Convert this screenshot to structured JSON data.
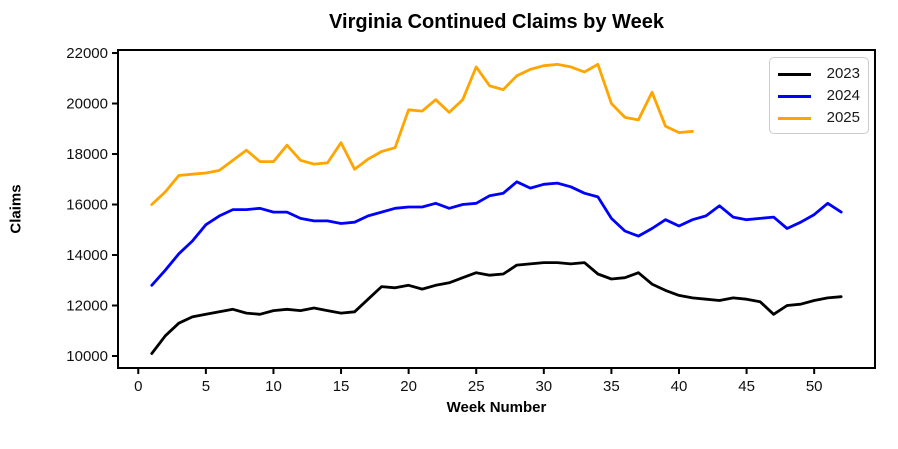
{
  "page": {
    "background": "#ffffff"
  },
  "chart_data": {
    "type": "line",
    "title": "Virginia Continued Claims by Week",
    "xlabel": "Week Number",
    "ylabel": "Claims",
    "x_ticks": [
      0,
      5,
      10,
      15,
      20,
      25,
      30,
      35,
      40,
      45,
      50
    ],
    "y_ticks": [
      10000,
      12000,
      14000,
      16000,
      18000,
      20000,
      22000
    ],
    "xlim": [
      -1.5,
      54.5
    ],
    "ylim": [
      9525,
      22120
    ],
    "grid": false,
    "axis_color": "#000000",
    "legend_position": "upper right",
    "legend_border_color": "#cccccc",
    "series": [
      {
        "name": "2023",
        "color": "#000000",
        "x": [
          1,
          2,
          3,
          4,
          5,
          6,
          7,
          8,
          9,
          10,
          11,
          12,
          13,
          14,
          15,
          16,
          17,
          18,
          19,
          20,
          21,
          22,
          23,
          24,
          25,
          26,
          27,
          28,
          29,
          30,
          31,
          32,
          33,
          34,
          35,
          36,
          37,
          38,
          39,
          40,
          41,
          42,
          43,
          44,
          45,
          46,
          47,
          48,
          49,
          50,
          51,
          52
        ],
        "values": [
          10100,
          10800,
          11300,
          11550,
          11650,
          11750,
          11850,
          11700,
          11650,
          11800,
          11850,
          11800,
          11900,
          11800,
          11700,
          11750,
          12250,
          12750,
          12700,
          12800,
          12650,
          12800,
          12900,
          13100,
          13300,
          13200,
          13250,
          13600,
          13650,
          13700,
          13700,
          13650,
          13700,
          13250,
          13050,
          13100,
          13300,
          12850,
          12600,
          12400,
          12300,
          12250,
          12200,
          12300,
          12250,
          12150,
          11650,
          12000,
          12050,
          12200,
          12300,
          12350
        ]
      },
      {
        "name": "2024",
        "color": "#0000ff",
        "x": [
          1,
          2,
          3,
          4,
          5,
          6,
          7,
          8,
          9,
          10,
          11,
          12,
          13,
          14,
          15,
          16,
          17,
          18,
          19,
          20,
          21,
          22,
          23,
          24,
          25,
          26,
          27,
          28,
          29,
          30,
          31,
          32,
          33,
          34,
          35,
          36,
          37,
          38,
          39,
          40,
          41,
          42,
          43,
          44,
          45,
          46,
          47,
          48,
          49,
          50,
          51,
          52
        ],
        "values": [
          12800,
          13400,
          14050,
          14550,
          15200,
          15550,
          15800,
          15800,
          15850,
          15700,
          15700,
          15450,
          15350,
          15350,
          15250,
          15300,
          15550,
          15700,
          15850,
          15900,
          15900,
          16050,
          15850,
          16000,
          16050,
          16350,
          16450,
          16900,
          16650,
          16800,
          16850,
          16700,
          16450,
          16300,
          15450,
          14950,
          14750,
          15050,
          15400,
          15150,
          15400,
          15550,
          15950,
          15500,
          15400,
          15450,
          15500,
          15050,
          15300,
          15600,
          16050,
          15700
        ]
      },
      {
        "name": "2025",
        "color": "#ffa500",
        "x": [
          1,
          2,
          3,
          4,
          5,
          6,
          7,
          8,
          9,
          10,
          11,
          12,
          13,
          14,
          15,
          16,
          17,
          18,
          19,
          20,
          21,
          22,
          23,
          24,
          25,
          26,
          27,
          28,
          29,
          30,
          31,
          32,
          33,
          34,
          35,
          36,
          37,
          38,
          39,
          40,
          41
        ],
        "values": [
          16000,
          16500,
          17150,
          17200,
          17250,
          17350,
          17750,
          18150,
          17700,
          17700,
          18350,
          17750,
          17600,
          17650,
          18450,
          17400,
          17800,
          18100,
          18250,
          19750,
          19700,
          20150,
          19650,
          20150,
          21450,
          20700,
          20550,
          21100,
          21350,
          21500,
          21550,
          21450,
          21250,
          21550,
          20000,
          19450,
          19350,
          20450,
          19100,
          18850,
          18900
        ]
      }
    ]
  }
}
